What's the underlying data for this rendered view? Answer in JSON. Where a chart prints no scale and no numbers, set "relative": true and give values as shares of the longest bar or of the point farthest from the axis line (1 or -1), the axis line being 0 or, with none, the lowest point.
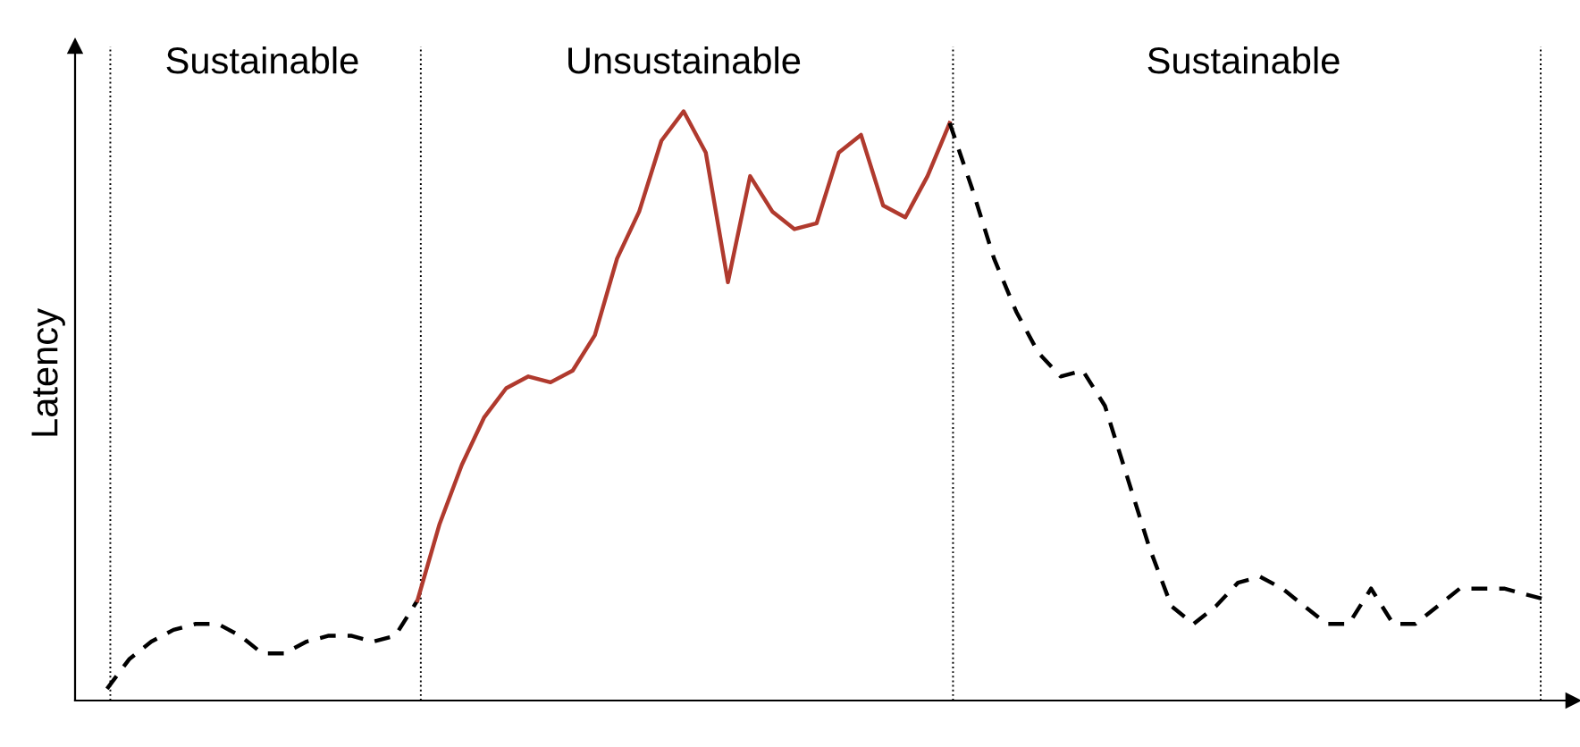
{
  "chart_data": {
    "type": "line",
    "relative": true,
    "ylabel": "Latency",
    "grid": "x",
    "legend": false,
    "categories": [
      null,
      null,
      null,
      null,
      null,
      null,
      null,
      null,
      null,
      null,
      null,
      null,
      null,
      null,
      null,
      null,
      null,
      null,
      null,
      null,
      null,
      null,
      null,
      null,
      null,
      null,
      null,
      null,
      null,
      null,
      null,
      null,
      null,
      null,
      null,
      null,
      null,
      null,
      null,
      null,
      null,
      null,
      null,
      null,
      null,
      null,
      null,
      null,
      null,
      null,
      null,
      null,
      null,
      null,
      null,
      null,
      null,
      null,
      null,
      null,
      null,
      null,
      null,
      null,
      null,
      null
    ],
    "series": [
      {
        "color": "#000000",
        "line_style": "dashed",
        "values": [
          0.02,
          0.07,
          0.1,
          0.12,
          0.13,
          0.13,
          0.11,
          0.08,
          0.08,
          0.1,
          0.11,
          0.11,
          0.1,
          0.11,
          0.17,
          null,
          null,
          null,
          null,
          null,
          null,
          null,
          null,
          null,
          null,
          null,
          null,
          null,
          null,
          null,
          null,
          null,
          null,
          null,
          null,
          null,
          null,
          null,
          null,
          null,
          null,
          null,
          null,
          null,
          null,
          null,
          null,
          null,
          null,
          null,
          null,
          null,
          null,
          null,
          null,
          null,
          null,
          null,
          null,
          null,
          null,
          null,
          null,
          null,
          null,
          null
        ]
      },
      {
        "color": "#b03a2e",
        "line_style": "solid",
        "values": [
          null,
          null,
          null,
          null,
          null,
          null,
          null,
          null,
          null,
          null,
          null,
          null,
          null,
          null,
          0.17,
          0.3,
          0.4,
          0.48,
          0.53,
          0.55,
          0.54,
          0.56,
          0.62,
          0.75,
          0.83,
          0.95,
          1.0,
          0.93,
          0.71,
          0.89,
          0.83,
          0.8,
          0.81,
          0.93,
          0.96,
          0.84,
          0.82,
          0.89,
          0.98,
          null,
          null,
          null,
          null,
          null,
          null,
          null,
          null,
          null,
          null,
          null,
          null,
          null,
          null,
          null,
          null,
          null,
          null,
          null,
          null,
          null,
          null,
          null,
          null,
          null,
          null,
          null
        ]
      },
      {
        "color": "#000000",
        "line_style": "dashed",
        "values": [
          null,
          null,
          null,
          null,
          null,
          null,
          null,
          null,
          null,
          null,
          null,
          null,
          null,
          null,
          null,
          null,
          null,
          null,
          null,
          null,
          null,
          null,
          null,
          null,
          null,
          null,
          null,
          null,
          null,
          null,
          null,
          null,
          null,
          null,
          null,
          null,
          null,
          null,
          0.98,
          0.87,
          0.75,
          0.66,
          0.59,
          0.55,
          0.56,
          0.5,
          0.38,
          0.26,
          0.16,
          0.13,
          0.16,
          0.2,
          0.21,
          0.19,
          0.16,
          0.13,
          0.13,
          0.19,
          0.13,
          0.13,
          0.16,
          0.19,
          0.19,
          0.19,
          0.18,
          0.17
        ]
      }
    ],
    "annotations": [
      "Sustainable",
      "Unsustainable",
      "Sustainable"
    ]
  }
}
